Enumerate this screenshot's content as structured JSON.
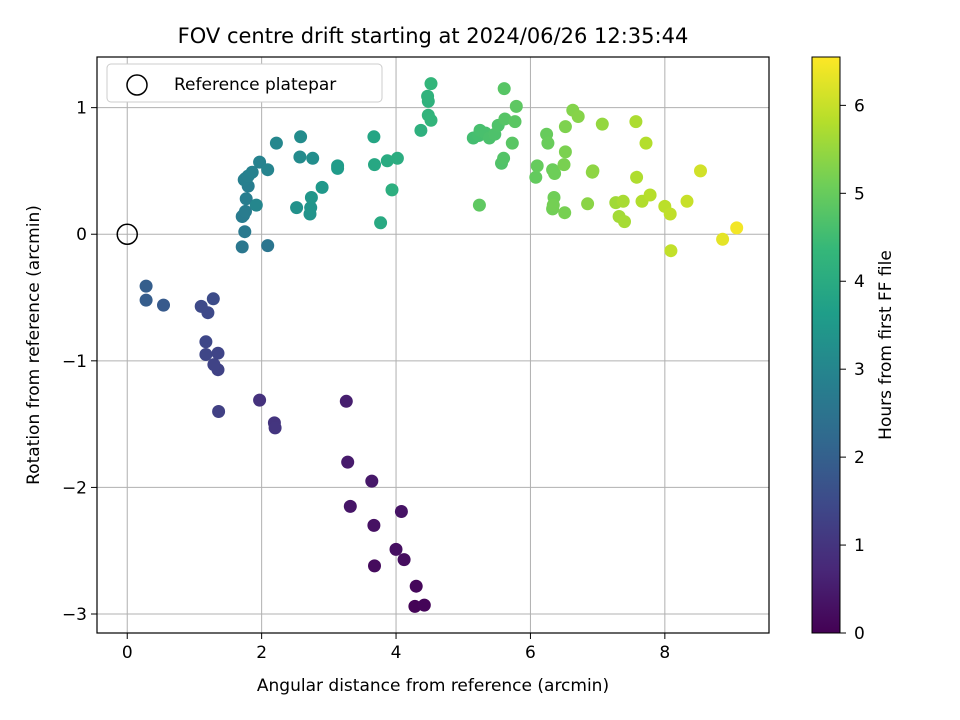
{
  "chart_data": {
    "type": "scatter",
    "title": "FOV centre drift starting at 2024/06/26 12:35:44",
    "xlabel": "Angular distance from reference (arcmin)",
    "ylabel": "Rotation from reference (arcmin)",
    "xlim": [
      -0.45,
      9.55
    ],
    "ylim": [
      -3.15,
      1.4
    ],
    "xticks": [
      0,
      2,
      4,
      6,
      8
    ],
    "xtick_labels": [
      "0",
      "2",
      "4",
      "6",
      "8"
    ],
    "yticks": [
      -3,
      -2,
      -1,
      0,
      1
    ],
    "ytick_labels": [
      "−3",
      "−2",
      "−1",
      "0",
      "1"
    ],
    "grid": true,
    "legend": {
      "position": "top-left",
      "label": "Reference platepar"
    },
    "reference_point": {
      "x": 0,
      "y": 0
    },
    "colorbar": {
      "label": "Hours from first FF file",
      "min": 0,
      "max": 6.55,
      "ticks": [
        0,
        1,
        2,
        3,
        4,
        5,
        6
      ],
      "tick_labels": [
        "0",
        "1",
        "2",
        "3",
        "4",
        "5",
        "6"
      ],
      "colormap": "viridis"
    },
    "points": [
      [
        4.28,
        -2.94,
        0.05
      ],
      [
        4.42,
        -2.93,
        0.08
      ],
      [
        4.3,
        -2.78,
        0.12
      ],
      [
        3.68,
        -2.62,
        0.18
      ],
      [
        4.12,
        -2.57,
        0.22
      ],
      [
        4.0,
        -2.49,
        0.26
      ],
      [
        3.67,
        -2.3,
        0.3
      ],
      [
        4.08,
        -2.19,
        0.34
      ],
      [
        3.32,
        -2.15,
        0.38
      ],
      [
        3.64,
        -1.95,
        0.42
      ],
      [
        3.28,
        -1.8,
        0.48
      ],
      [
        3.26,
        -1.32,
        0.55
      ],
      [
        1.97,
        -1.31,
        0.95
      ],
      [
        2.19,
        -1.49,
        1.0
      ],
      [
        2.2,
        -1.53,
        1.02
      ],
      [
        1.36,
        -1.4,
        1.25
      ],
      [
        1.35,
        -1.07,
        1.3
      ],
      [
        1.29,
        -1.03,
        1.32
      ],
      [
        1.35,
        -0.94,
        1.35
      ],
      [
        1.17,
        -0.95,
        1.38
      ],
      [
        1.17,
        -0.85,
        1.42
      ],
      [
        1.2,
        -0.62,
        1.45
      ],
      [
        1.1,
        -0.57,
        1.48
      ],
      [
        1.28,
        -0.51,
        1.52
      ],
      [
        0.54,
        -0.56,
        1.85
      ],
      [
        0.28,
        -0.52,
        1.92
      ],
      [
        0.28,
        -0.41,
        1.95
      ],
      [
        2.09,
        -0.09,
        2.55
      ],
      [
        1.71,
        -0.1,
        2.6
      ],
      [
        1.75,
        0.02,
        2.65
      ],
      [
        1.73,
        0.15,
        2.7
      ],
      [
        1.71,
        0.14,
        2.72
      ],
      [
        1.76,
        0.18,
        2.74
      ],
      [
        1.77,
        0.28,
        2.76
      ],
      [
        1.8,
        0.38,
        2.78
      ],
      [
        1.76,
        0.44,
        2.8
      ],
      [
        1.74,
        0.43,
        2.82
      ],
      [
        1.8,
        0.46,
        2.85
      ],
      [
        1.86,
        0.49,
        2.88
      ],
      [
        1.97,
        0.57,
        2.9
      ],
      [
        2.09,
        0.51,
        2.95
      ],
      [
        1.92,
        0.23,
        3.0
      ],
      [
        2.22,
        0.72,
        3.05
      ],
      [
        2.57,
        0.61,
        3.15
      ],
      [
        2.58,
        0.77,
        3.18
      ],
      [
        2.76,
        0.6,
        3.22
      ],
      [
        2.52,
        0.21,
        3.3
      ],
      [
        2.72,
        0.16,
        3.35
      ],
      [
        2.73,
        0.21,
        3.38
      ],
      [
        2.74,
        0.29,
        3.42
      ],
      [
        2.9,
        0.37,
        3.48
      ],
      [
        3.13,
        0.52,
        3.55
      ],
      [
        3.13,
        0.54,
        3.58
      ],
      [
        3.67,
        0.77,
        3.85
      ],
      [
        3.68,
        0.55,
        3.9
      ],
      [
        3.77,
        0.09,
        3.95
      ],
      [
        3.87,
        0.58,
        4.0
      ],
      [
        4.02,
        0.6,
        4.05
      ],
      [
        3.94,
        0.35,
        4.1
      ],
      [
        4.37,
        0.82,
        4.15
      ],
      [
        4.48,
        1.05,
        4.2
      ],
      [
        4.47,
        1.09,
        4.22
      ],
      [
        4.48,
        0.94,
        4.25
      ],
      [
        4.52,
        0.9,
        4.28
      ],
      [
        4.52,
        1.19,
        4.3
      ],
      [
        5.15,
        0.76,
        4.55
      ],
      [
        5.23,
        0.78,
        4.58
      ],
      [
        5.25,
        0.82,
        4.6
      ],
      [
        5.33,
        0.8,
        4.62
      ],
      [
        5.39,
        0.76,
        4.65
      ],
      [
        5.47,
        0.79,
        4.68
      ],
      [
        5.52,
        0.86,
        4.7
      ],
      [
        5.57,
        0.56,
        4.72
      ],
      [
        5.6,
        0.6,
        4.75
      ],
      [
        5.62,
        0.91,
        4.78
      ],
      [
        5.61,
        1.15,
        4.8
      ],
      [
        5.73,
        0.72,
        4.82
      ],
      [
        5.77,
        0.89,
        4.85
      ],
      [
        5.79,
        1.01,
        4.88
      ],
      [
        5.24,
        0.23,
        4.9
      ],
      [
        6.08,
        0.45,
        4.95
      ],
      [
        6.1,
        0.54,
        4.98
      ],
      [
        6.24,
        0.79,
        5.0
      ],
      [
        6.26,
        0.72,
        5.03
      ],
      [
        6.33,
        0.51,
        5.05
      ],
      [
        6.36,
        0.48,
        5.08
      ],
      [
        6.35,
        0.29,
        5.1
      ],
      [
        6.33,
        0.2,
        5.12
      ],
      [
        6.34,
        0.23,
        5.15
      ],
      [
        6.51,
        0.17,
        5.18
      ],
      [
        6.5,
        0.55,
        5.2
      ],
      [
        6.52,
        0.65,
        5.22
      ],
      [
        6.52,
        0.85,
        5.25
      ],
      [
        6.63,
        0.98,
        5.3
      ],
      [
        6.71,
        0.93,
        5.33
      ],
      [
        6.85,
        0.24,
        5.38
      ],
      [
        6.92,
        0.49,
        5.4
      ],
      [
        6.93,
        0.5,
        5.42
      ],
      [
        7.07,
        0.87,
        5.48
      ],
      [
        7.27,
        0.25,
        5.6
      ],
      [
        7.32,
        0.14,
        5.63
      ],
      [
        7.4,
        0.1,
        5.66
      ],
      [
        7.38,
        0.26,
        5.68
      ],
      [
        7.57,
        0.89,
        5.72
      ],
      [
        7.58,
        0.45,
        5.75
      ],
      [
        7.66,
        0.26,
        5.78
      ],
      [
        7.72,
        0.72,
        5.8
      ],
      [
        7.78,
        0.31,
        5.83
      ],
      [
        8.0,
        0.22,
        5.88
      ],
      [
        8.08,
        0.16,
        5.92
      ],
      [
        8.09,
        -0.13,
        5.95
      ],
      [
        8.33,
        0.26,
        6.0
      ],
      [
        8.53,
        0.5,
        6.1
      ],
      [
        8.86,
        -0.04,
        6.3
      ],
      [
        9.07,
        0.05,
        6.45
      ]
    ]
  }
}
